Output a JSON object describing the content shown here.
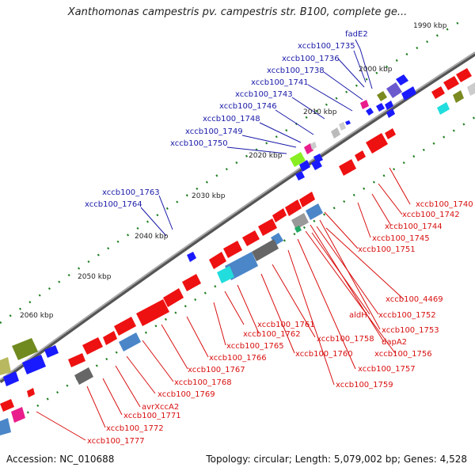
{
  "title": "Xanthomonas campestris pv. campestris str. B100, complete ge...",
  "accession": "Accession: NC_010688",
  "topology": "Topology: circular; Length: 5,079,002 bp; Genes: 4,528",
  "ticks": [
    "1990 kbp",
    "2000 kbp",
    "2010 kbp",
    "2020 kbp",
    "2030 kbp",
    "2040 kbp",
    "2050 kbp",
    "2060 kbp"
  ],
  "colors": {
    "forward_label": "#1a1aa8",
    "reverse_label": "#d81010",
    "backbone": "#777777"
  },
  "forward_labels": [
    "fadE2",
    "xccb100_1735",
    "xccb100_1736",
    "xccb100_1738",
    "xccb100_1741",
    "xccb100_1743",
    "xccb100_1746",
    "xccb100_1748",
    "xccb100_1749",
    "xccb100_1750",
    "xccb100_1763",
    "xccb100_1764"
  ],
  "reverse_labels": [
    "xccb100_1740",
    "xccb100_1742",
    "xccb100_1744",
    "xccb100_1745",
    "xccb100_1751",
    "xccb100_4469",
    "aldH",
    "xccb100_1752",
    "xccb100_1753",
    "dapA2",
    "xccb100_1756",
    "xccb100_1757",
    "xccb100_1759",
    "xccb100_1761",
    "xccb100_1758",
    "xccb100_1762",
    "xccb100_1760",
    "xccb100_1765",
    "xccb100_1766",
    "xccb100_1767",
    "xccb100_1768",
    "xccb100_1769",
    "avrXccA2",
    "xccb100_1771",
    "xccb100_1772",
    "xccb100_1777"
  ]
}
